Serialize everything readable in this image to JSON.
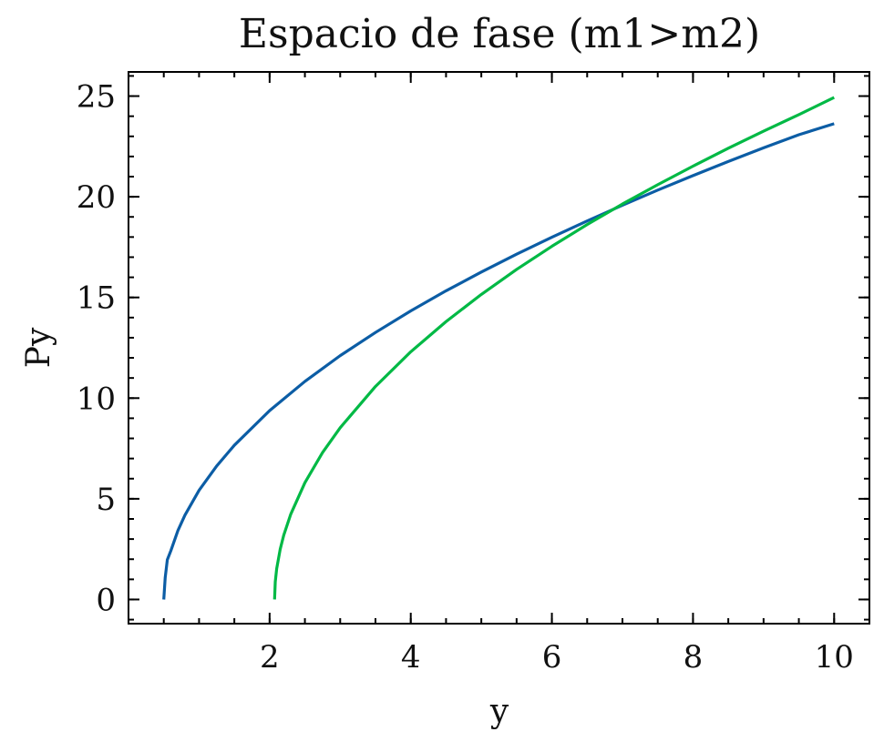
{
  "colors": {
    "series_blue": "#0C5DA5",
    "series_green": "#00B945",
    "axis": "#000000",
    "background": "#FFFFFF"
  },
  "chart_data": {
    "type": "line",
    "title": "Espacio de fase (m1>m2)",
    "xlabel": "y",
    "ylabel": "Py",
    "xlim": [
      0.0,
      10.5
    ],
    "ylim": [
      -1.2,
      26.2
    ],
    "x_ticks": [
      2,
      4,
      6,
      8,
      10
    ],
    "x_tick_labels": [
      "2",
      "4",
      "6",
      "8",
      "10"
    ],
    "y_ticks": [
      0,
      5,
      10,
      15,
      20,
      25
    ],
    "y_tick_labels": [
      "0",
      "5",
      "10",
      "15",
      "20",
      "25"
    ],
    "x_minor_step": 0.5,
    "y_minor_step": 1,
    "grid": false,
    "legend": "none",
    "series": [
      {
        "color_key": "series_blue",
        "x": [
          0.5,
          0.52,
          0.55,
          0.6,
          0.7,
          0.8,
          1.0,
          1.25,
          1.5,
          2.0,
          2.5,
          3.0,
          3.5,
          4.0,
          4.5,
          5.0,
          5.5,
          6.0,
          6.5,
          7.0,
          7.5,
          8.0,
          8.5,
          9.0,
          9.5,
          10.0
        ],
        "y": [
          0.0,
          1.08,
          1.97,
          2.42,
          3.42,
          4.19,
          5.42,
          6.63,
          7.66,
          9.38,
          10.83,
          12.11,
          13.26,
          14.33,
          15.33,
          16.26,
          17.15,
          17.99,
          18.8,
          19.58,
          20.33,
          21.05,
          21.75,
          22.43,
          23.08,
          23.63
        ]
      },
      {
        "color_key": "series_green",
        "x": [
          2.07,
          2.08,
          2.1,
          2.15,
          2.2,
          2.3,
          2.5,
          2.75,
          3.0,
          3.5,
          4.0,
          4.5,
          5.0,
          5.5,
          6.0,
          6.5,
          7.0,
          7.5,
          8.0,
          8.5,
          9.0,
          9.5,
          10.0
        ],
        "y": [
          0.0,
          0.88,
          1.53,
          2.5,
          3.19,
          4.24,
          5.8,
          7.3,
          8.53,
          10.58,
          12.3,
          13.8,
          15.15,
          16.39,
          17.54,
          18.62,
          19.64,
          20.6,
          21.52,
          22.41,
          23.26,
          24.08,
          24.93
        ]
      }
    ]
  }
}
